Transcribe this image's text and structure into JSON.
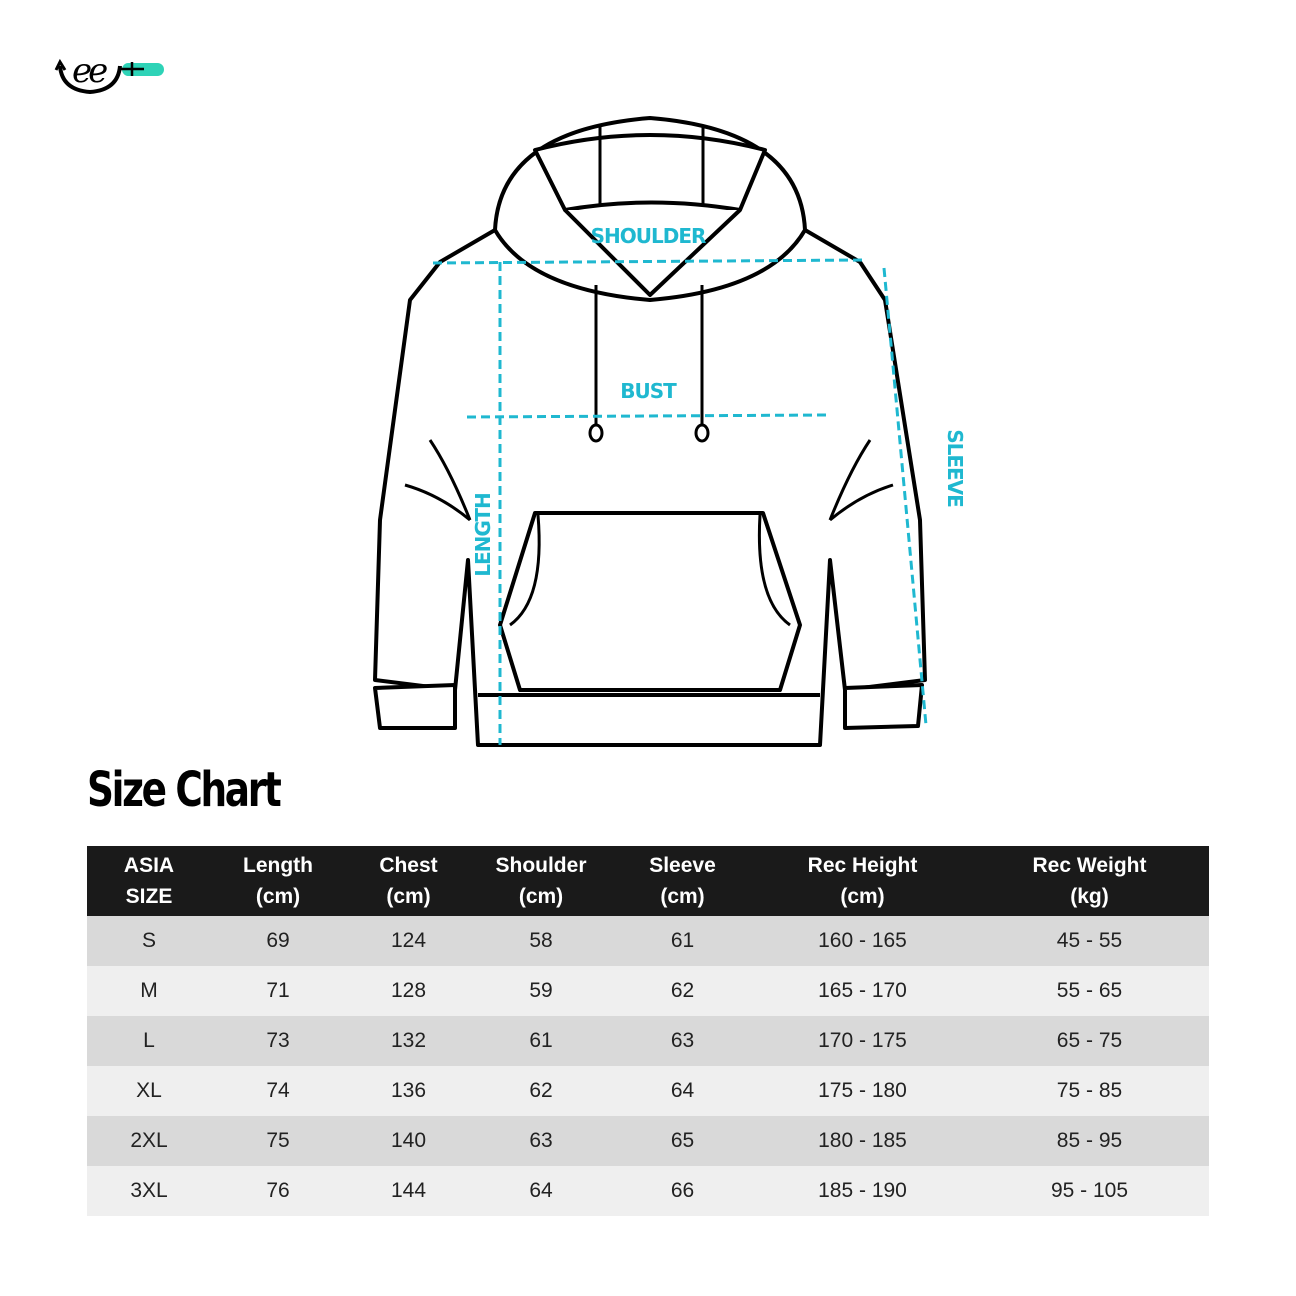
{
  "brand": {
    "logo_text": "ee+",
    "accent_color": "#2ed3b7"
  },
  "diagram": {
    "labels": {
      "shoulder": "SHOULDER",
      "bust": "BUST",
      "length": "LENGTH",
      "sleeve": "SLEEVE"
    },
    "measure_color": "#1fb8d0"
  },
  "title": "Size Chart",
  "table": {
    "headers": [
      [
        "ASIA",
        "SIZE"
      ],
      [
        "Length",
        "(cm)"
      ],
      [
        "Chest",
        "(cm)"
      ],
      [
        "Shoulder",
        "(cm)"
      ],
      [
        "Sleeve",
        "(cm)"
      ],
      [
        "Rec Height",
        "(cm)"
      ],
      [
        "Rec Weight",
        "(kg)"
      ]
    ],
    "rows": [
      [
        "S",
        "69",
        "124",
        "58",
        "61",
        "160 - 165",
        "45 - 55"
      ],
      [
        "M",
        "71",
        "128",
        "59",
        "62",
        "165 - 170",
        "55 - 65"
      ],
      [
        "L",
        "73",
        "132",
        "61",
        "63",
        "170 - 175",
        "65 - 75"
      ],
      [
        "XL",
        "74",
        "136",
        "62",
        "64",
        "175 - 180",
        "75 - 85"
      ],
      [
        "2XL",
        "75",
        "140",
        "63",
        "65",
        "180 - 185",
        "85 - 95"
      ],
      [
        "3XL",
        "76",
        "144",
        "64",
        "66",
        "185 - 190",
        "95 - 105"
      ]
    ]
  }
}
